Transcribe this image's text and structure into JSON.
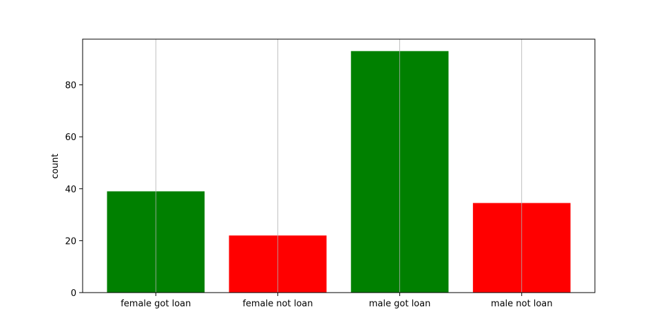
{
  "chart_data": {
    "type": "bar",
    "title": "",
    "xlabel": "",
    "ylabel": "count",
    "categories": [
      "female got loan",
      "female not loan",
      "male got loan",
      "male not loan"
    ],
    "values": [
      39,
      22,
      93,
      34.5
    ],
    "colors": [
      "#008000",
      "#ff0000",
      "#008000",
      "#ff0000"
    ],
    "ylim": [
      0,
      97.6
    ],
    "yticks": [
      0,
      20,
      40,
      60,
      80
    ],
    "grid": "x-vertical",
    "grid_color": "#b0b0b0",
    "legend": "none"
  }
}
